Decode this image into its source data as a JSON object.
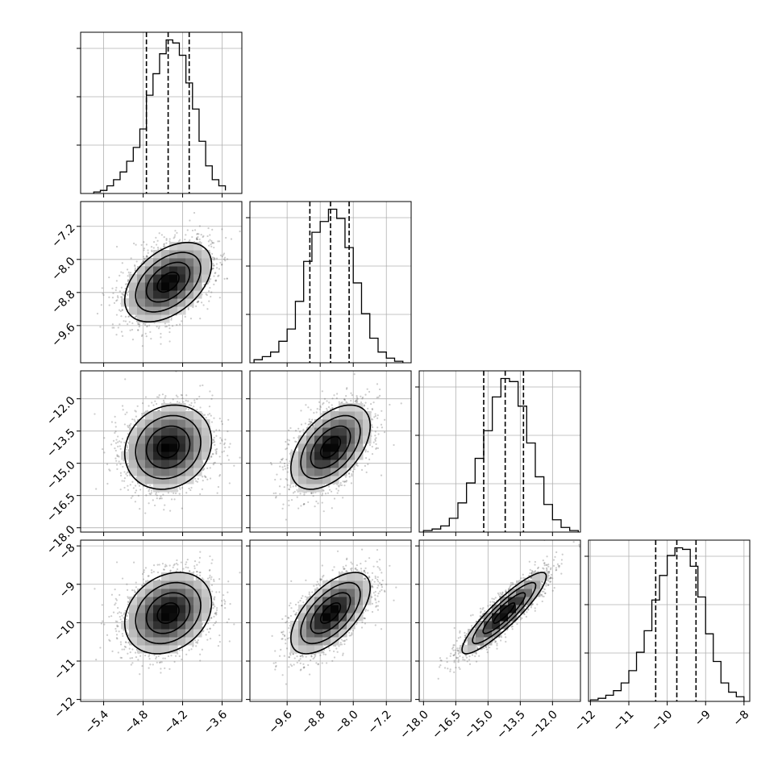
{
  "chart_data": {
    "type": "corner",
    "title": "",
    "parameters": [
      {
        "label": "",
        "range": [
          -5.75,
          -3.3
        ],
        "ticks": [
          -5.4,
          -4.8,
          -4.2,
          -3.6
        ],
        "tick_labels": [
          "−5.4",
          "−4.8",
          "−4.2",
          "−3.6"
        ],
        "quantiles": [
          -4.75,
          -4.42,
          -4.1
        ]
      },
      {
        "label": "",
        "range": [
          -10.5,
          -6.6
        ],
        "ticks": [
          -9.6,
          -8.8,
          -8.0,
          -7.2
        ],
        "tick_labels": [
          "−9.6",
          "−8.8",
          "−8.0",
          "−7.2"
        ],
        "quantiles": [
          -9.05,
          -8.55,
          -8.1
        ]
      },
      {
        "label": "",
        "range": [
          -18.2,
          -10.7
        ],
        "ticks": [
          -18.0,
          -16.5,
          -15.0,
          -13.5,
          -12.0
        ],
        "tick_labels": [
          "−18.0",
          "−16.5",
          "−15.0",
          "−13.5",
          "−12.0"
        ],
        "quantiles": [
          -15.2,
          -14.2,
          -13.35
        ]
      },
      {
        "label": "",
        "range": [
          -12.05,
          -7.85
        ],
        "ticks": [
          -12,
          -11,
          -10,
          -9,
          -8
        ],
        "tick_labels": [
          "−12",
          "−11",
          "−10",
          "−9",
          "−8"
        ],
        "quantiles": [
          -10.3,
          -9.75,
          -9.25
        ]
      }
    ],
    "histograms": [
      {
        "bin_edges": [
          -5.55,
          -5.45,
          -5.35,
          -5.25,
          -5.15,
          -5.05,
          -4.95,
          -4.85,
          -4.75,
          -4.65,
          -4.55,
          -4.45,
          -4.35,
          -4.25,
          -4.15,
          -4.05,
          -3.95,
          -3.85,
          -3.75,
          -3.65,
          -3.55
        ],
        "counts": [
          1,
          2,
          5,
          9,
          14,
          21,
          30,
          42,
          64,
          78,
          91,
          100,
          98,
          90,
          72,
          55,
          34,
          18,
          9,
          5,
          2
        ]
      },
      {
        "bin_edges": [
          -10.4,
          -10.2,
          -10.0,
          -9.8,
          -9.6,
          -9.4,
          -9.2,
          -9.0,
          -8.8,
          -8.6,
          -8.4,
          -8.2,
          -8.0,
          -7.8,
          -7.6,
          -7.4,
          -7.2,
          -7.0,
          -6.8
        ],
        "counts": [
          2,
          4,
          7,
          14,
          22,
          40,
          66,
          85,
          92,
          100,
          94,
          75,
          52,
          32,
          16,
          7,
          3,
          1
        ]
      },
      {
        "bin_edges": [
          -18.0,
          -17.6,
          -17.2,
          -16.8,
          -16.4,
          -16.0,
          -15.6,
          -15.2,
          -14.8,
          -14.4,
          -14.0,
          -13.6,
          -13.2,
          -12.8,
          -12.4,
          -12.0,
          -11.6,
          -11.2,
          -10.8
        ],
        "counts": [
          1,
          2,
          4,
          9,
          19,
          32,
          48,
          66,
          88,
          100,
          98,
          82,
          58,
          36,
          18,
          8,
          3,
          1
        ]
      },
      {
        "bin_edges": [
          -12.0,
          -11.8,
          -11.6,
          -11.4,
          -11.2,
          -11.0,
          -10.8,
          -10.6,
          -10.4,
          -10.2,
          -10.0,
          -9.8,
          -9.6,
          -9.4,
          -9.2,
          -9.0,
          -8.8,
          -8.6,
          -8.4,
          -8.2,
          -8.0
        ],
        "counts": [
          1,
          2,
          4,
          7,
          12,
          20,
          32,
          46,
          66,
          82,
          95,
          100,
          99,
          88,
          68,
          44,
          26,
          12,
          6,
          3
        ]
      }
    ],
    "means": [
      -4.42,
      -8.55,
      -14.25,
      -9.75
    ],
    "stds": [
      0.33,
      0.48,
      0.98,
      0.53
    ],
    "correlations": [
      [
        1.0,
        0.45,
        0.15,
        0.25
      ],
      [
        0.45,
        1.0,
        0.5,
        0.62
      ],
      [
        0.15,
        0.5,
        1.0,
        0.9
      ],
      [
        0.25,
        0.62,
        0.9,
        1.0
      ]
    ],
    "contour_levels_sigma": [
      0.5,
      1.0,
      1.5,
      2.0
    ],
    "grid": true,
    "colors": {
      "axes": "#000000",
      "grid": "#b0b0b0",
      "points": "#555555",
      "density_dark": "#000000",
      "density_light": "#ffffff"
    }
  }
}
